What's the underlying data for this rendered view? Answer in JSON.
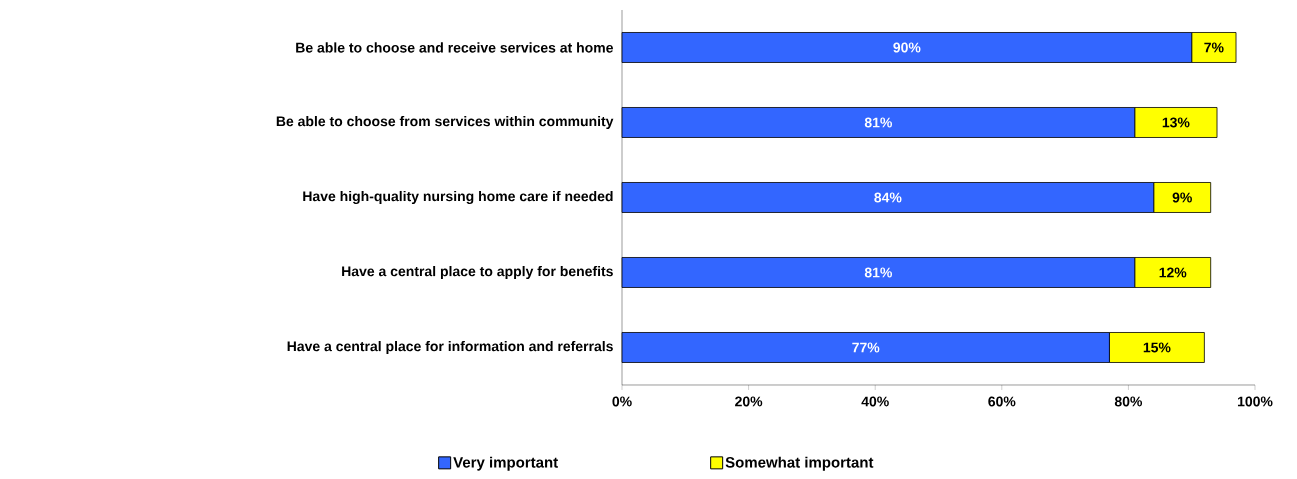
{
  "chart_data": {
    "type": "bar",
    "orientation": "horizontal",
    "stacked": true,
    "categories": [
      "Be able to choose and receive services at home",
      "Be able to choose from services within community",
      "Have high-quality nursing home care if needed",
      "Have a central place to apply for benefits",
      "Have a central place for information and referrals"
    ],
    "series": [
      {
        "name": "Very important",
        "color": "#3366ff",
        "values": [
          90,
          81,
          84,
          81,
          77
        ],
        "value_labels": [
          "90%",
          "81%",
          "84%",
          "81%",
          "77%"
        ]
      },
      {
        "name": "Somewhat important",
        "color": "#ffff00",
        "values": [
          7,
          13,
          9,
          12,
          15
        ],
        "value_labels": [
          "7%",
          "13%",
          "9%",
          "12%",
          "15%"
        ]
      }
    ],
    "xlim": [
      0,
      100
    ],
    "xticks": [
      {
        "value": 0,
        "label": "0%"
      },
      {
        "value": 20,
        "label": "20%"
      },
      {
        "value": 40,
        "label": "40%"
      },
      {
        "value": 60,
        "label": "60%"
      },
      {
        "value": 80,
        "label": "80%"
      },
      {
        "value": 100,
        "label": "100%"
      }
    ],
    "legend": "bottom"
  }
}
